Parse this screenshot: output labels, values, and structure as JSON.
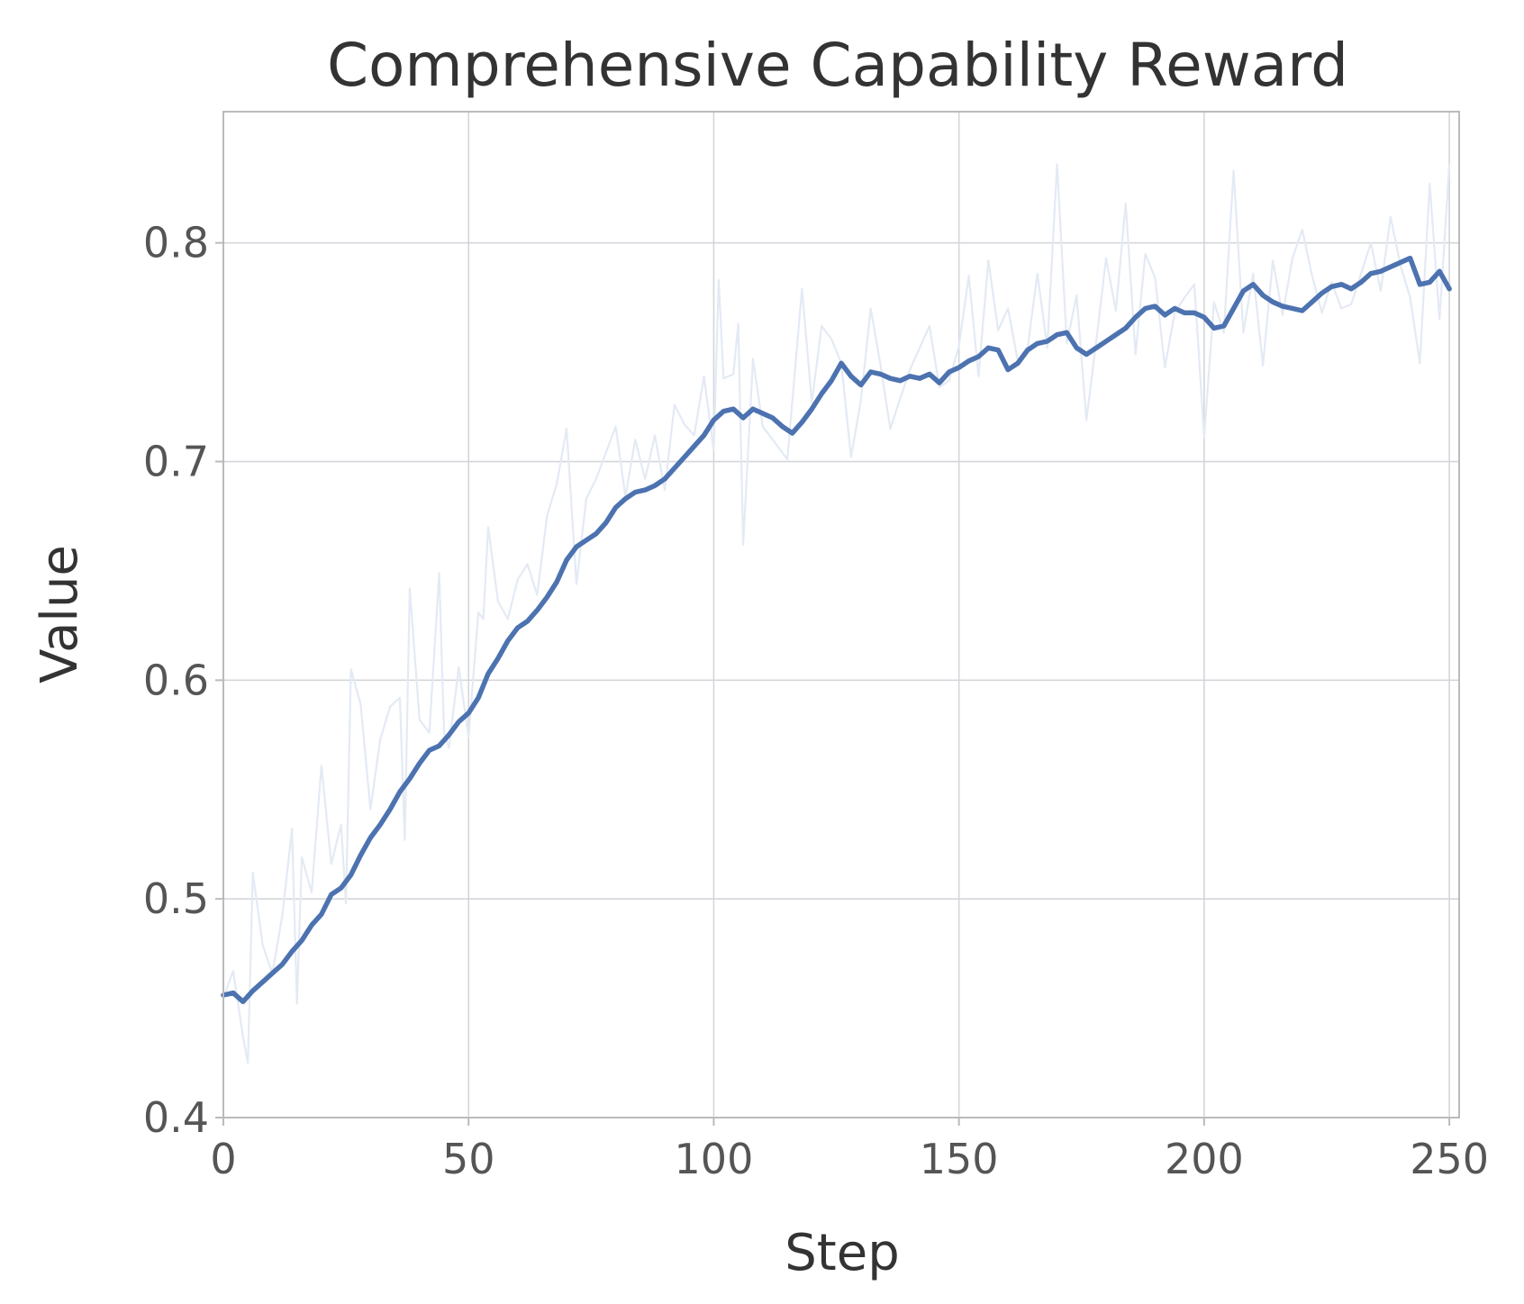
{
  "chart_data": {
    "type": "line",
    "title": "Comprehensive Capability Reward",
    "xlabel": "Step",
    "ylabel": "Value",
    "xlim": [
      0,
      252
    ],
    "ylim": [
      0.4,
      0.86
    ],
    "xticks": [
      0,
      50,
      100,
      150,
      200,
      250
    ],
    "yticks": [
      0.4,
      0.5,
      0.6,
      0.7,
      0.8
    ],
    "xtick_labels": [
      "0",
      "50",
      "100",
      "150",
      "200",
      "250"
    ],
    "ytick_labels": [
      "0.4",
      "0.5",
      "0.6",
      "0.7",
      "0.8"
    ],
    "grid": true,
    "colors": {
      "smooth": "#4c72b0",
      "raw": "#e4eaf4"
    },
    "series": [
      {
        "role": "raw",
        "x": [
          0,
          2,
          4,
          5,
          6,
          8,
          10,
          12,
          14,
          15,
          16,
          18,
          20,
          22,
          24,
          25,
          26,
          28,
          30,
          32,
          34,
          36,
          37,
          38,
          40,
          42,
          44,
          45,
          46,
          48,
          50,
          52,
          53,
          54,
          56,
          58,
          60,
          62,
          64,
          66,
          68,
          70,
          72,
          74,
          76,
          78,
          80,
          82,
          84,
          86,
          88,
          90,
          92,
          94,
          96,
          98,
          100,
          101,
          102,
          104,
          105,
          106,
          108,
          110,
          112,
          115,
          118,
          120,
          122,
          124,
          126,
          128,
          130,
          132,
          134,
          136,
          140,
          144,
          146,
          148,
          150,
          152,
          154,
          156,
          158,
          160,
          162,
          164,
          166,
          168,
          170,
          172,
          174,
          176,
          178,
          180,
          182,
          184,
          186,
          188,
          190,
          192,
          194,
          196,
          198,
          200,
          202,
          204,
          206,
          208,
          210,
          212,
          214,
          216,
          218,
          220,
          222,
          224,
          226,
          228,
          230,
          232,
          234,
          236,
          238,
          240,
          242,
          244,
          246,
          248,
          250
        ],
        "y": [
          0.455,
          0.467,
          0.437,
          0.425,
          0.512,
          0.479,
          0.466,
          0.492,
          0.532,
          0.452,
          0.519,
          0.503,
          0.561,
          0.516,
          0.534,
          0.498,
          0.605,
          0.589,
          0.541,
          0.573,
          0.588,
          0.592,
          0.527,
          0.642,
          0.582,
          0.576,
          0.649,
          0.576,
          0.569,
          0.606,
          0.574,
          0.631,
          0.628,
          0.67,
          0.636,
          0.628,
          0.646,
          0.653,
          0.639,
          0.675,
          0.69,
          0.715,
          0.644,
          0.683,
          0.692,
          0.704,
          0.716,
          0.684,
          0.71,
          0.692,
          0.712,
          0.687,
          0.726,
          0.717,
          0.712,
          0.739,
          0.705,
          0.783,
          0.738,
          0.74,
          0.763,
          0.662,
          0.747,
          0.716,
          0.71,
          0.701,
          0.779,
          0.727,
          0.762,
          0.756,
          0.745,
          0.702,
          0.728,
          0.77,
          0.744,
          0.715,
          0.742,
          0.762,
          0.734,
          0.737,
          0.753,
          0.785,
          0.739,
          0.792,
          0.76,
          0.77,
          0.746,
          0.752,
          0.786,
          0.752,
          0.836,
          0.754,
          0.776,
          0.719,
          0.755,
          0.793,
          0.769,
          0.818,
          0.749,
          0.795,
          0.784,
          0.743,
          0.768,
          0.775,
          0.781,
          0.711,
          0.773,
          0.759,
          0.833,
          0.759,
          0.786,
          0.744,
          0.792,
          0.767,
          0.793,
          0.806,
          0.785,
          0.768,
          0.782,
          0.77,
          0.772,
          0.786,
          0.8,
          0.778,
          0.812,
          0.79,
          0.775,
          0.745,
          0.827,
          0.765,
          0.836
        ]
      },
      {
        "role": "smoothed",
        "x": [
          0,
          2,
          4,
          6,
          8,
          10,
          12,
          14,
          16,
          18,
          20,
          22,
          24,
          26,
          28,
          30,
          32,
          34,
          36,
          38,
          40,
          42,
          44,
          46,
          48,
          50,
          52,
          54,
          56,
          58,
          60,
          62,
          64,
          66,
          68,
          70,
          72,
          74,
          76,
          78,
          80,
          82,
          84,
          86,
          88,
          90,
          92,
          94,
          96,
          98,
          100,
          102,
          104,
          106,
          108,
          110,
          112,
          114,
          116,
          118,
          120,
          122,
          124,
          126,
          128,
          130,
          132,
          134,
          136,
          138,
          140,
          142,
          144,
          146,
          148,
          150,
          152,
          154,
          156,
          158,
          160,
          162,
          164,
          166,
          168,
          170,
          172,
          174,
          176,
          178,
          180,
          182,
          184,
          186,
          188,
          190,
          192,
          194,
          196,
          198,
          200,
          202,
          204,
          206,
          208,
          210,
          212,
          214,
          216,
          218,
          220,
          222,
          224,
          226,
          228,
          230,
          232,
          234,
          236,
          238,
          240,
          242,
          244,
          246,
          248,
          250
        ],
        "y": [
          0.456,
          0.457,
          0.453,
          0.458,
          0.462,
          0.466,
          0.47,
          0.476,
          0.481,
          0.488,
          0.493,
          0.502,
          0.505,
          0.511,
          0.52,
          0.528,
          0.534,
          0.541,
          0.549,
          0.555,
          0.562,
          0.568,
          0.57,
          0.575,
          0.581,
          0.585,
          0.592,
          0.603,
          0.61,
          0.618,
          0.624,
          0.627,
          0.632,
          0.638,
          0.645,
          0.655,
          0.661,
          0.664,
          0.667,
          0.672,
          0.679,
          0.683,
          0.686,
          0.687,
          0.689,
          0.692,
          0.697,
          0.702,
          0.707,
          0.712,
          0.719,
          0.723,
          0.724,
          0.72,
          0.724,
          0.722,
          0.72,
          0.716,
          0.713,
          0.718,
          0.724,
          0.731,
          0.737,
          0.745,
          0.739,
          0.735,
          0.741,
          0.74,
          0.738,
          0.737,
          0.739,
          0.738,
          0.74,
          0.736,
          0.741,
          0.743,
          0.746,
          0.748,
          0.752,
          0.751,
          0.742,
          0.745,
          0.751,
          0.754,
          0.755,
          0.758,
          0.759,
          0.752,
          0.749,
          0.752,
          0.755,
          0.758,
          0.761,
          0.766,
          0.77,
          0.771,
          0.767,
          0.77,
          0.768,
          0.768,
          0.766,
          0.761,
          0.762,
          0.77,
          0.778,
          0.781,
          0.776,
          0.773,
          0.771,
          0.77,
          0.769,
          0.773,
          0.777,
          0.78,
          0.781,
          0.779,
          0.782,
          0.786,
          0.787,
          0.789,
          0.791,
          0.793,
          0.781,
          0.782,
          0.787,
          0.779
        ]
      }
    ]
  }
}
